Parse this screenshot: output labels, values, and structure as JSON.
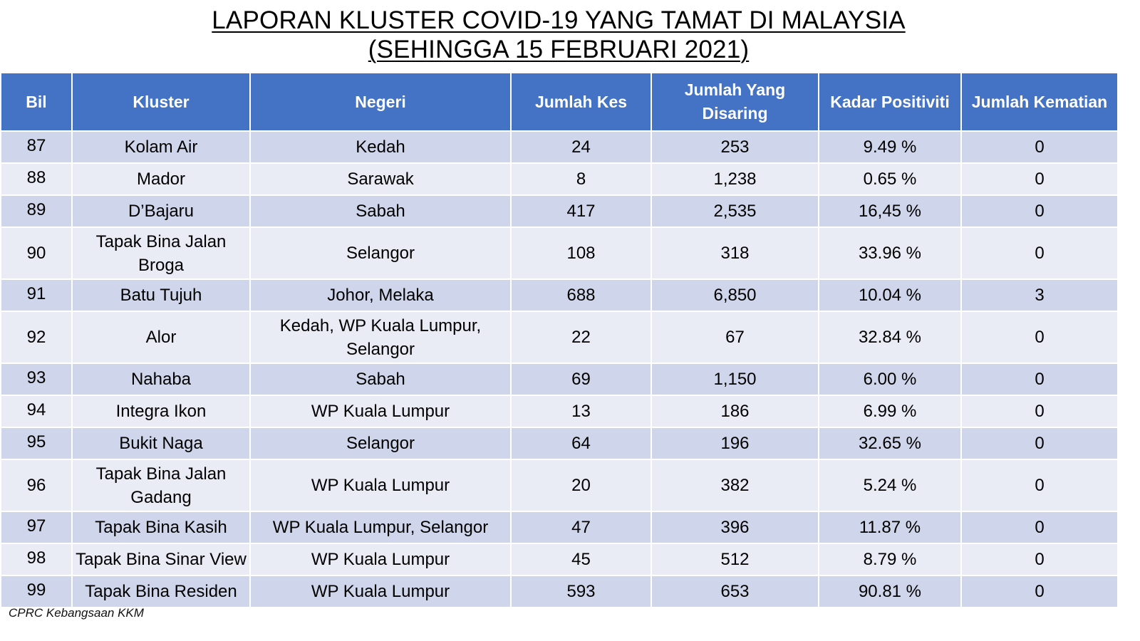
{
  "title": {
    "line1": "LAPORAN KLUSTER COVID-19 YANG TAMAT DI MALAYSIA",
    "line2": "(SEHINGGA  15 FEBRUARI 2021)"
  },
  "table": {
    "headers": [
      "Bil",
      "Kluster",
      "Negeri",
      "Jumlah Kes",
      "Jumlah Yang Disaring",
      "Kadar Positiviti",
      "Jumlah Kematian"
    ],
    "rows": [
      [
        "87",
        "Kolam Air",
        "Kedah",
        "24",
        "253",
        "9.49 %",
        "0"
      ],
      [
        "88",
        "Mador",
        "Sarawak",
        "8",
        "1,238",
        "0.65 %",
        "0"
      ],
      [
        "89",
        "D’Bajaru",
        "Sabah",
        "417",
        "2,535",
        "16,45 %",
        "0"
      ],
      [
        "90",
        "Tapak Bina Jalan Broga",
        "Selangor",
        "108",
        "318",
        "33.96 %",
        "0"
      ],
      [
        "91",
        "Batu Tujuh",
        "Johor, Melaka",
        "688",
        "6,850",
        "10.04 %",
        "3"
      ],
      [
        "92",
        "Alor",
        "Kedah, WP Kuala Lumpur, Selangor",
        "22",
        "67",
        "32.84 %",
        "0"
      ],
      [
        "93",
        "Nahaba",
        "Sabah",
        "69",
        "1,150",
        "6.00 %",
        "0"
      ],
      [
        "94",
        "Integra Ikon",
        "WP Kuala Lumpur",
        "13",
        "186",
        "6.99 %",
        "0"
      ],
      [
        "95",
        "Bukit Naga",
        "Selangor",
        "64",
        "196",
        "32.65 %",
        "0"
      ],
      [
        "96",
        "Tapak Bina Jalan Gadang",
        "WP Kuala Lumpur",
        "20",
        "382",
        "5.24 %",
        "0"
      ],
      [
        "97",
        "Tapak Bina Kasih",
        "WP Kuala Lumpur, Selangor",
        "47",
        "396",
        "11.87 %",
        "0"
      ],
      [
        "98",
        "Tapak Bina Sinar View",
        "WP Kuala Lumpur",
        "45",
        "512",
        "8.79 %",
        "0"
      ],
      [
        "99",
        "Tapak Bina Residen",
        "WP Kuala Lumpur",
        "593",
        "653",
        "90.81 %",
        "0"
      ]
    ]
  },
  "footer": "CPRC Kebangsaan KKM",
  "colors": {
    "header_bg": "#4472c4",
    "row_odd_bg": "#cfd5ea",
    "row_even_bg": "#e9ebf5"
  }
}
